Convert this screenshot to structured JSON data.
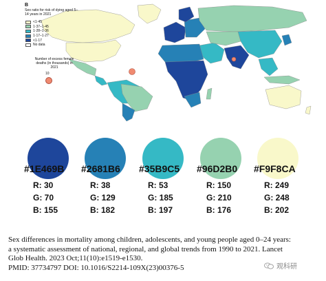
{
  "map": {
    "panel_letter": "B",
    "legend_title": "Sex ratio for risk of dying aged 5–14 years in 2021",
    "legend_items": [
      {
        "label": "<1·45",
        "color": "#F9F8CA"
      },
      {
        "label": "1·37–1·45",
        "color": "#96D2B0"
      },
      {
        "label": "1·28–1·36",
        "color": "#35B9C5"
      },
      {
        "label": "1·17–1·27",
        "color": "#2681B6"
      },
      {
        "label": "<1·17",
        "color": "#1E469B"
      },
      {
        "label": "No data",
        "color": "#FFFFFF"
      }
    ],
    "bubble_title": "Number of excess female deaths (in thousands) in 2021",
    "bubble_value": "10"
  },
  "palette": [
    {
      "hex": "#1E469B",
      "r": "R: 30",
      "g": "G: 70",
      "b": "B: 155"
    },
    {
      "hex": "#2681B6",
      "r": "R: 38",
      "g": "G: 129",
      "b": "B: 182"
    },
    {
      "hex": "#35B9C5",
      "r": "R: 53",
      "g": "G: 185",
      "b": "B: 197"
    },
    {
      "hex": "#96D2B0",
      "r": "R: 150",
      "g": "G: 210",
      "b": "B: 176"
    },
    {
      "hex": "#F9F8CA",
      "r": "R: 249",
      "g": "G: 248",
      "b": "B: 202"
    }
  ],
  "citation": {
    "line1": "Sex differences in mortality among children, adolescents, and young people aged 0–24 years:",
    "line2": "a systematic assessment of national, regional, and global trends from 1990 to 2021. Lancet",
    "line3": "Glob Health. 2023 Oct;11(10):e1519-e1530.",
    "line4": "PMID: 37734797 DOI: 10.1016/S2214-109X(23)00376-5"
  },
  "watermark": {
    "text": "观科研",
    "icon": "wechat-icon"
  }
}
